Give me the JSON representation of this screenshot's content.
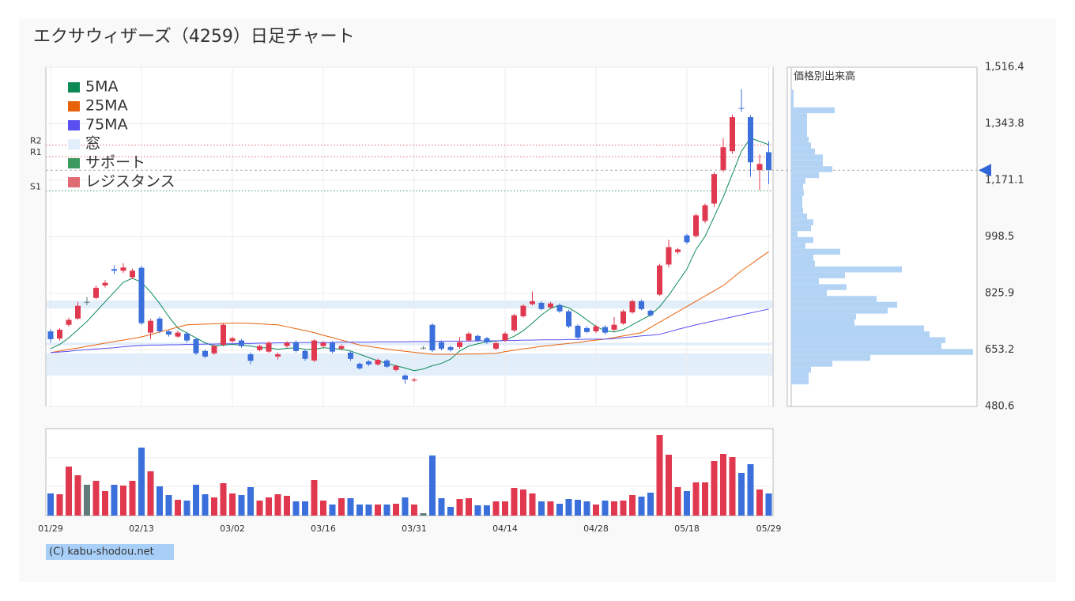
{
  "chart_data": {
    "type": "candlestick",
    "title": "エクサウィザーズ（4259）日足チャート",
    "categories": [
      "01/29",
      null,
      null,
      null,
      null,
      null,
      null,
      null,
      null,
      null,
      "02/13",
      null,
      null,
      null,
      null,
      null,
      null,
      null,
      null,
      null,
      "03/02",
      null,
      null,
      null,
      null,
      null,
      null,
      null,
      null,
      null,
      "03/16",
      null,
      null,
      null,
      null,
      null,
      null,
      null,
      null,
      null,
      "03/31",
      null,
      null,
      null,
      null,
      null,
      null,
      null,
      null,
      null,
      "04/14",
      null,
      null,
      null,
      null,
      null,
      null,
      null,
      null,
      null,
      "04/28",
      null,
      null,
      null,
      null,
      null,
      null,
      null,
      null,
      null,
      "05/18",
      null,
      null,
      null,
      null,
      null,
      null,
      null,
      null,
      "05/29"
    ],
    "open": [
      710,
      688,
      730,
      749,
      800,
      812,
      850,
      900,
      895,
      875,
      904,
      706,
      749,
      710,
      694,
      703,
      686,
      650,
      643,
      669,
      680,
      682,
      640,
      653,
      648,
      633,
      665,
      677,
      650,
      621,
      665,
      675,
      657,
      645,
      611,
      618,
      609,
      621,
      592,
      575,
      560,
      660,
      730,
      677,
      662,
      662,
      682,
      696,
      689,
      657,
      682,
      713,
      756,
      793,
      797,
      783,
      790,
      771,
      727,
      720,
      710,
      723,
      715,
      734,
      768,
      802,
      773,
      822,
      914,
      952,
      1003,
      1001,
      1047,
      1100,
      1202,
      1260,
      1392,
      1364,
      1202,
      1257
    ],
    "high": [
      717,
      720,
      752,
      800,
      815,
      850,
      866,
      912,
      918,
      902,
      910,
      748,
      755,
      714,
      712,
      708,
      690,
      655,
      670,
      735,
      694,
      687,
      645,
      669,
      680,
      645,
      680,
      682,
      655,
      686,
      680,
      680,
      670,
      650,
      615,
      622,
      627,
      625,
      608,
      580,
      567,
      665,
      735,
      682,
      666,
      693,
      708,
      700,
      693,
      678,
      708,
      764,
      793,
      832,
      802,
      800,
      795,
      776,
      732,
      725,
      730,
      728,
      754,
      776,
      807,
      807,
      778,
      916,
      990,
      965,
      1008,
      1070,
      1100,
      1196,
      1300,
      1372,
      1449,
      1370,
      1250,
      1290
    ],
    "low": [
      676,
      682,
      724,
      745,
      790,
      808,
      844,
      885,
      888,
      870,
      730,
      686,
      704,
      694,
      690,
      676,
      638,
      628,
      638,
      664,
      675,
      660,
      610,
      649,
      644,
      624,
      660,
      645,
      620,
      616,
      660,
      643,
      652,
      620,
      593,
      604,
      605,
      598,
      588,
      550,
      555,
      655,
      647,
      652,
      648,
      657,
      678,
      678,
      672,
      652,
      678,
      708,
      752,
      789,
      774,
      778,
      766,
      720,
      686,
      704,
      705,
      700,
      710,
      730,
      764,
      774,
      754,
      818,
      905,
      946,
      976,
      996,
      1040,
      1090,
      1196,
      1252,
      1380,
      1182,
      1141,
      1160
    ],
    "close": [
      686,
      715,
      745,
      788,
      800,
      843,
      858,
      895,
      905,
      895,
      735,
      742,
      710,
      700,
      706,
      682,
      643,
      633,
      665,
      730,
      689,
      665,
      620,
      665,
      675,
      640,
      675,
      650,
      626,
      682,
      675,
      648,
      665,
      626,
      597,
      609,
      623,
      602,
      604,
      563,
      563,
      660,
      652,
      657,
      653,
      677,
      703,
      682,
      677,
      674,
      703,
      759,
      788,
      802,
      778,
      795,
      771,
      725,
      691,
      708,
      725,
      706,
      730,
      771,
      802,
      778,
      759,
      911,
      967,
      960,
      982,
      1064,
      1095,
      1190,
      1272,
      1364,
      1390,
      1226,
      1221,
      1202
    ],
    "up_color": "#e0384f",
    "down_color": "#3a6fdc",
    "flat_color": "#5f7a78",
    "ylim": [
      480.6,
      1516.4
    ],
    "yticks": [
      {
        "value": 1516.4,
        "label": "1,516.4"
      },
      {
        "value": 1343.8,
        "label": "1,343.8"
      },
      {
        "value": 1171.1,
        "label": "1,171.1"
      },
      998.5,
      825.9,
      653.2,
      480.6
    ],
    "grid": true,
    "legend_position": "upper left",
    "moving_averages": [
      {
        "name": "5MA",
        "color": "#0b8a55",
        "values": [
          657,
          670,
          690,
          715,
          740,
          770,
          800,
          830,
          860,
          872,
          860,
          830,
          795,
          755,
          720,
          705,
          690,
          675,
          665,
          668,
          670,
          668,
          665,
          660,
          660,
          655,
          658,
          660,
          655,
          655,
          660,
          658,
          655,
          650,
          640,
          630,
          620,
          612,
          605,
          598,
          590,
          595,
          605,
          612,
          625,
          650,
          665,
          672,
          678,
          680,
          683,
          695,
          712,
          735,
          760,
          780,
          790,
          782,
          765,
          745,
          725,
          712,
          708,
          715,
          730,
          745,
          760,
          785,
          820,
          860,
          900,
          960,
          1000,
          1060,
          1120,
          1190,
          1260,
          1300,
          1290,
          1280
        ]
      },
      {
        "name": "25MA",
        "color": "#e8620a",
        "values": [
          645,
          650,
          655,
          659,
          664,
          669,
          674,
          679,
          683,
          688,
          693,
          700,
          708,
          715,
          723,
          730,
          731,
          732,
          733,
          734,
          735,
          735,
          734,
          733,
          731,
          730,
          724,
          718,
          712,
          706,
          698,
          691,
          683,
          676,
          668,
          664,
          660,
          656,
          652,
          649,
          646,
          643,
          640,
          640,
          640,
          640,
          641,
          641,
          642,
          643,
          648,
          652,
          657,
          660,
          664,
          667,
          670,
          673,
          676,
          680,
          683,
          686,
          691,
          696,
          701,
          706,
          722,
          738,
          754,
          770,
          786,
          802,
          818,
          834,
          850,
          872,
          895,
          914,
          934,
          953
        ]
      },
      {
        "name": "75MA",
        "color": "#5a4ff0",
        "values": [
          645,
          647,
          649,
          652,
          654,
          656,
          658,
          660,
          663,
          665,
          667,
          668,
          668,
          669,
          669,
          670,
          670,
          671,
          671,
          672,
          672,
          673,
          673,
          674,
          674,
          675,
          675,
          676,
          676,
          676,
          676,
          676,
          677,
          677,
          677,
          677,
          678,
          678,
          678,
          678,
          679,
          679,
          679,
          680,
          680,
          680,
          680,
          681,
          681,
          681,
          682,
          682,
          683,
          683,
          684,
          684,
          684,
          685,
          685,
          686,
          686,
          686,
          688,
          691,
          693,
          696,
          698,
          701,
          708,
          716,
          723,
          730,
          736,
          742,
          748,
          754,
          760,
          766,
          772,
          778
        ]
      }
    ],
    "windows": {
      "name": "窓",
      "color": "#e3eefb",
      "ranges": [
        [
          780,
          804
        ],
        [
          667,
          676
        ],
        [
          575,
          643
        ]
      ]
    },
    "support": {
      "name": "サポート",
      "color": "#3c9a5e",
      "levels": [
        {
          "label": "S1",
          "value": 1139
        }
      ]
    },
    "resistance": {
      "name": "レジスタンス",
      "color": "#e06b74",
      "levels": [
        {
          "label": "R2",
          "value": 1279
        },
        {
          "label": "R1",
          "value": 1243
        }
      ]
    },
    "volume": {
      "values": [
        28,
        27,
        62,
        51,
        39,
        44,
        31,
        39,
        38,
        44,
        86,
        56,
        37,
        26,
        20,
        19,
        39,
        27,
        23,
        41,
        28,
        26,
        36,
        19,
        23,
        27,
        25,
        18,
        18,
        45,
        19,
        14,
        22,
        22,
        14,
        14,
        14,
        14,
        15,
        23,
        14,
        3,
        76,
        22,
        11,
        21,
        22,
        13,
        13,
        18,
        18,
        35,
        33,
        28,
        18,
        18,
        15,
        21,
        20,
        18,
        14,
        19,
        18,
        19,
        26,
        24,
        29,
        102,
        77,
        36,
        31,
        42,
        42,
        69,
        78,
        74,
        54,
        65,
        33,
        28
      ],
      "ylim": [
        0,
        110
      ]
    },
    "profile": {
      "label": "価格別出来高",
      "color": "#b3d3f5",
      "bins": [
        548,
        566,
        584,
        602,
        620,
        638,
        656,
        674,
        692,
        710,
        728,
        746,
        764,
        782,
        800,
        818,
        836,
        854,
        872,
        890,
        908,
        926,
        944,
        962,
        980,
        998,
        1016,
        1034,
        1052,
        1070,
        1088,
        1106,
        1124,
        1142,
        1160,
        1178,
        1196,
        1214,
        1232,
        1250,
        1268,
        1286,
        1304,
        1322,
        1340,
        1358,
        1376,
        1394,
        1412,
        1430,
        1448
      ],
      "values": [
        22,
        22,
        25,
        52,
        100,
        230,
        190,
        195,
        175,
        168,
        80,
        82,
        122,
        134,
        108,
        45,
        70,
        35,
        68,
        140,
        30,
        28,
        62,
        18,
        28,
        8,
        25,
        28,
        20,
        15,
        14,
        14,
        16,
        15,
        18,
        35,
        52,
        40,
        40,
        30,
        25,
        22,
        20,
        20,
        20,
        20,
        55,
        3,
        3,
        3
      ],
      "xlim": [
        0,
        235
      ]
    },
    "copyright": "(C) kabu-shodou.net"
  }
}
